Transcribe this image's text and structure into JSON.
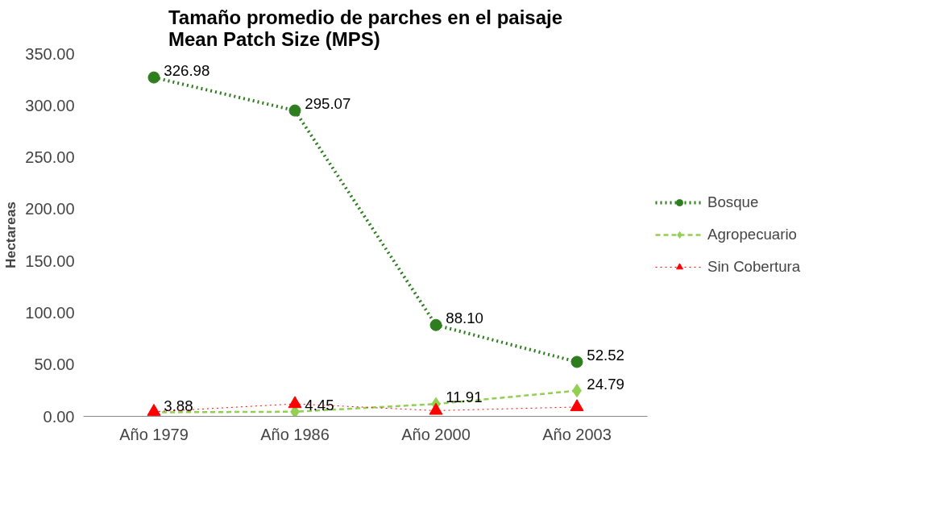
{
  "chart_data": {
    "type": "line",
    "title": "Tamaño promedio de parches en el paisaje\nMean Patch Size (MPS)",
    "ylabel": "Hectareas",
    "categories": [
      "Año 1979",
      "Año 1986",
      "Año 2000",
      "Año 2003"
    ],
    "series": [
      {
        "name": "Bosque",
        "color": "#2e7d1f",
        "marker": "circle",
        "line_style": "dotted",
        "values": [
          326.98,
          295.07,
          88.1,
          52.52
        ],
        "value_labels": [
          "326.98",
          "295.07",
          "88.10",
          "52.52"
        ]
      },
      {
        "name": "Agropecuario",
        "color": "#92d050",
        "marker": "diamond",
        "line_style": "dashed",
        "values": [
          3.88,
          4.45,
          11.91,
          24.79
        ],
        "value_labels": [
          "3.88",
          "4.45",
          "11.91",
          "24.79"
        ]
      },
      {
        "name": "Sin Cobertura",
        "color": "#ff0000",
        "marker": "triangle",
        "line_style": "dotted",
        "values": [
          4.5,
          12,
          5.5,
          9
        ]
      }
    ],
    "ylim": [
      0,
      350
    ],
    "yticks": [
      {
        "value": 0,
        "label": "0.00"
      },
      {
        "value": 50,
        "label": "50.00"
      },
      {
        "value": 100,
        "label": "100.00"
      },
      {
        "value": 150,
        "label": "150.00"
      },
      {
        "value": 200,
        "label": "200.00"
      },
      {
        "value": 250,
        "label": "250.00"
      },
      {
        "value": 300,
        "label": "300.00"
      },
      {
        "value": 350,
        "label": "350.00"
      }
    ],
    "grid": false,
    "legend": "right"
  }
}
